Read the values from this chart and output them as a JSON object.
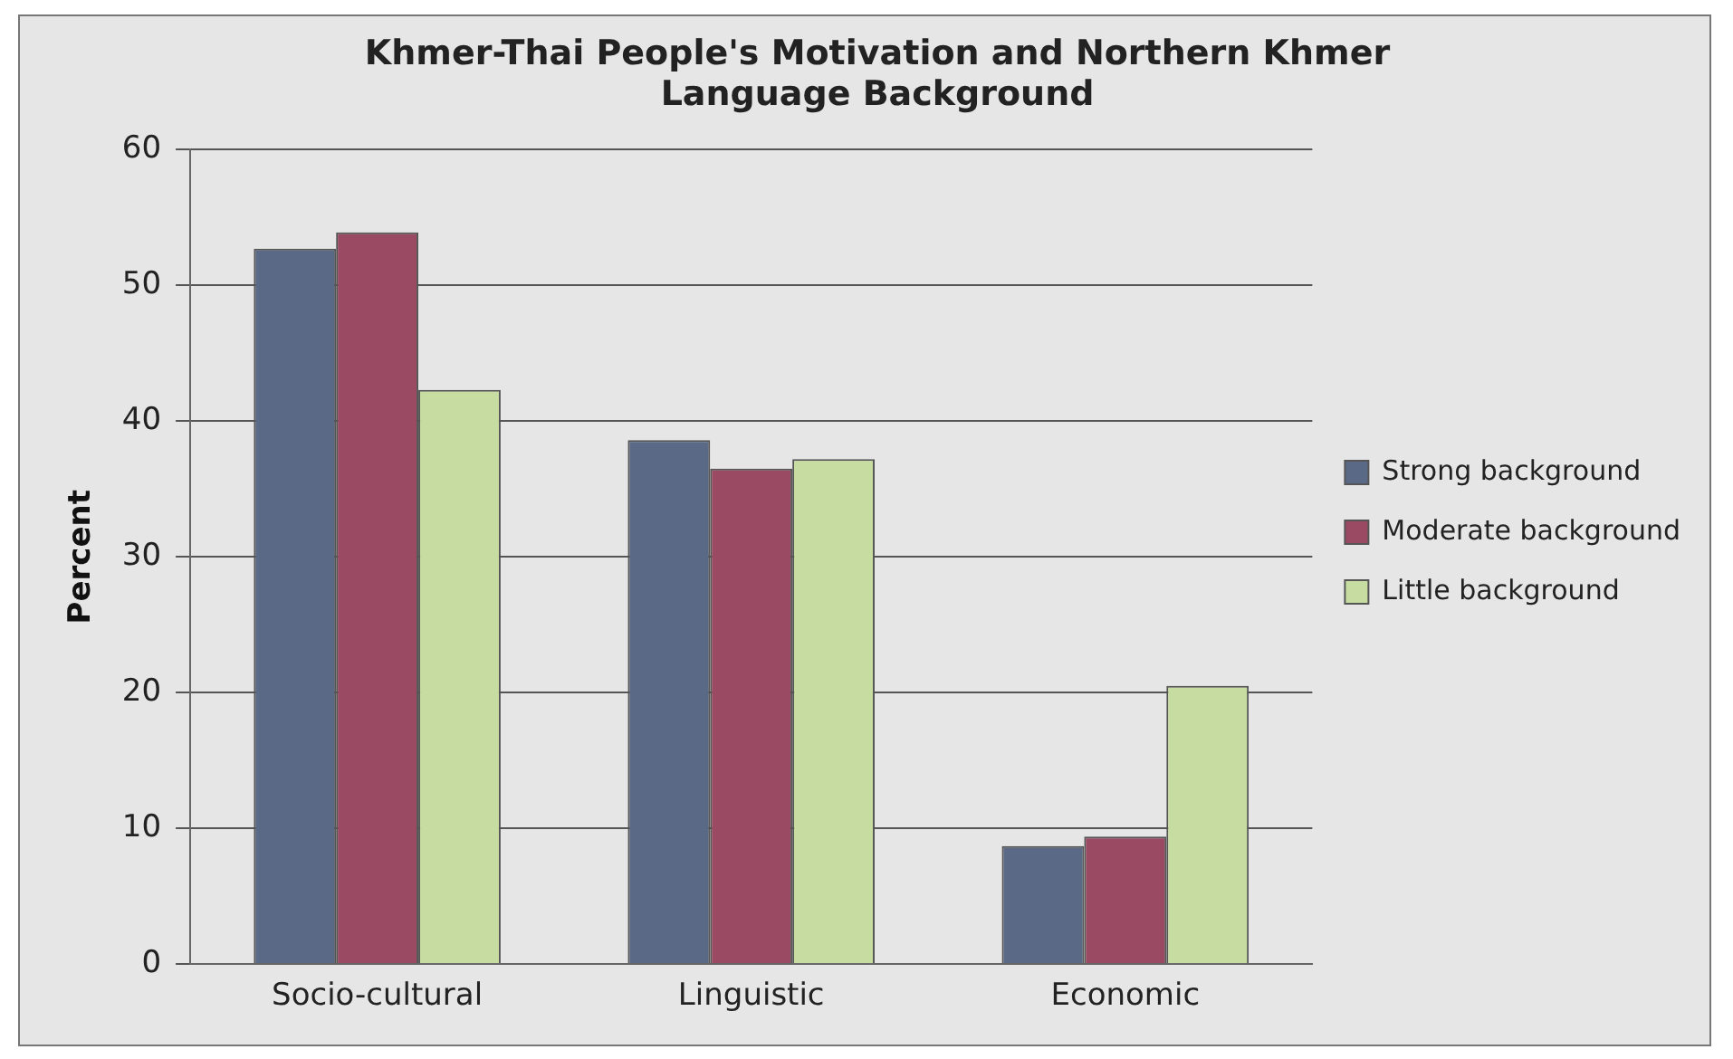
{
  "chart_data": {
    "type": "bar",
    "title": "Khmer-Thai People's Motivation and Northern Khmer Language Background",
    "ylabel": "Percent",
    "categories": [
      "Socio-cultural",
      "Linguistic",
      "Economic"
    ],
    "series": [
      {
        "name": "Strong background",
        "color": "#5a6a86",
        "values": [
          52.7,
          38.6,
          8.7
        ]
      },
      {
        "name": "Moderate background",
        "color": "#9a4a62",
        "values": [
          53.9,
          36.5,
          9.4
        ]
      },
      {
        "name": "Little background",
        "color": "#c6dca0",
        "values": [
          42.3,
          37.2,
          20.5
        ]
      }
    ],
    "ylim": [
      0,
      60
    ],
    "yticks": [
      0,
      10,
      20,
      30,
      40,
      50,
      60
    ],
    "grid": "y",
    "legend": "right"
  }
}
